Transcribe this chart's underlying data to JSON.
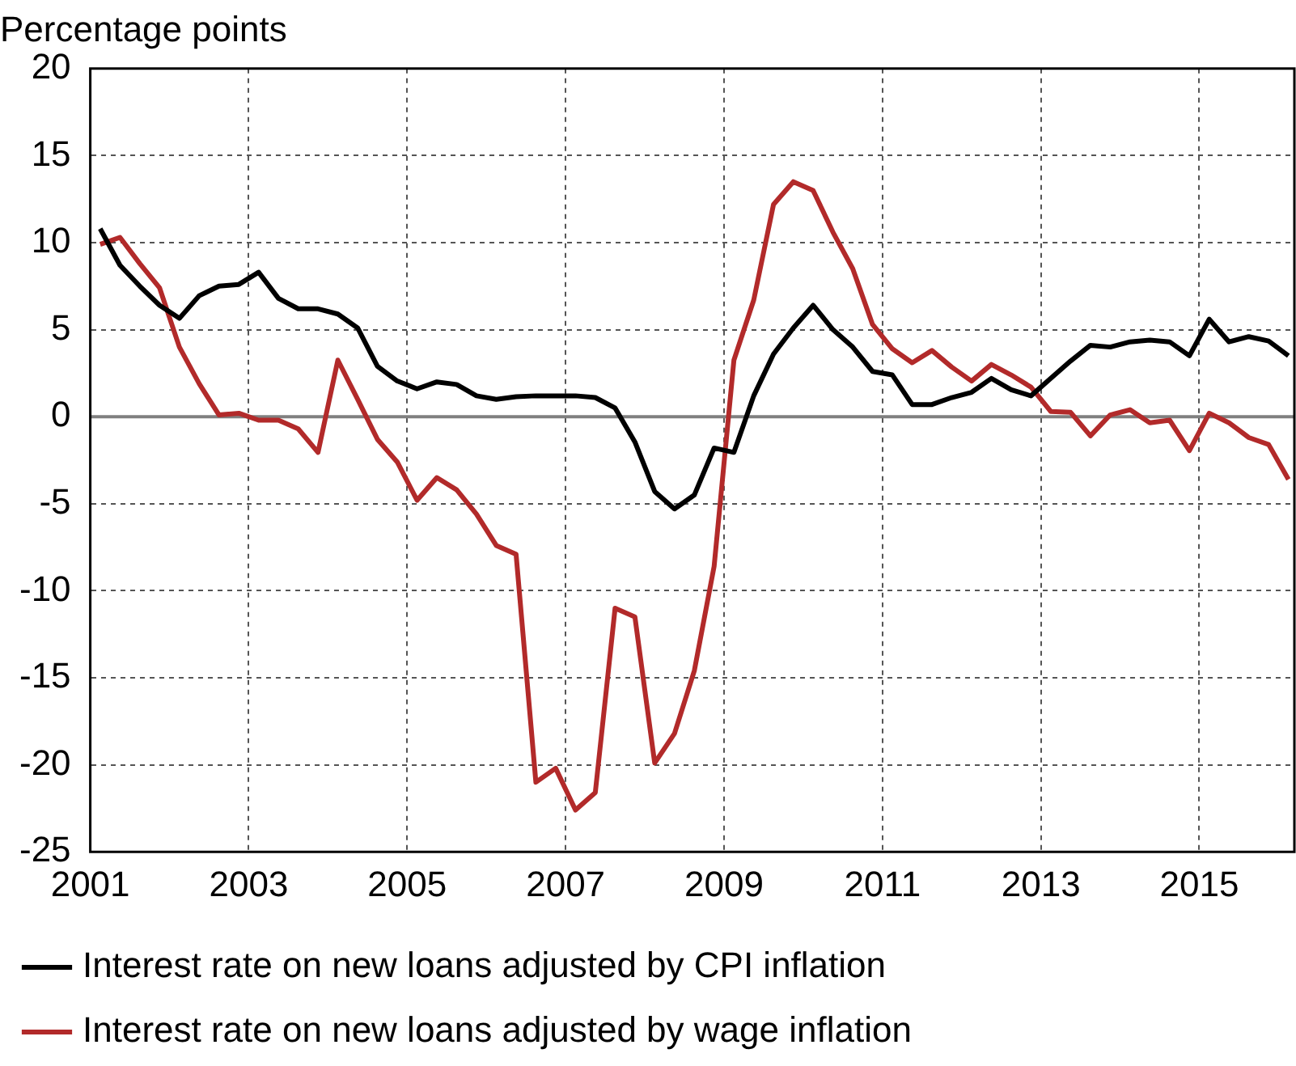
{
  "chart_data": {
    "type": "line",
    "ylabel": "Percentage points",
    "x": [
      2001.125,
      2001.375,
      2001.625,
      2001.875,
      2002.125,
      2002.375,
      2002.625,
      2002.875,
      2003.125,
      2003.375,
      2003.625,
      2003.875,
      2004.125,
      2004.375,
      2004.625,
      2004.875,
      2005.125,
      2005.375,
      2005.625,
      2005.875,
      2006.125,
      2006.375,
      2006.625,
      2006.875,
      2007.125,
      2007.375,
      2007.625,
      2007.875,
      2008.125,
      2008.375,
      2008.625,
      2008.875,
      2009.125,
      2009.375,
      2009.625,
      2009.875,
      2010.125,
      2010.375,
      2010.625,
      2010.875,
      2011.125,
      2011.375,
      2011.625,
      2011.875,
      2012.125,
      2012.375,
      2012.625,
      2012.875,
      2013.125,
      2013.375,
      2013.625,
      2013.875,
      2014.125,
      2014.375,
      2014.625,
      2014.875,
      2015.125,
      2015.375,
      2015.625,
      2015.875,
      2016.125
    ],
    "series": [
      {
        "name": "Interest rate on new loans adjusted by CPI inflation",
        "color": "#000000",
        "values": [
          10.8,
          8.7,
          7.5,
          6.4,
          5.65,
          6.95,
          7.5,
          7.6,
          8.3,
          6.8,
          6.2,
          6.2,
          5.9,
          5.1,
          2.9,
          2.05,
          1.6,
          2.0,
          1.85,
          1.2,
          1.0,
          1.15,
          1.2,
          1.2,
          1.2,
          1.1,
          0.5,
          -1.45,
          -4.3,
          -5.3,
          -4.5,
          -1.8,
          -2.05,
          1.2,
          3.6,
          5.1,
          6.4,
          5.0,
          4.0,
          2.6,
          2.4,
          0.7,
          0.7,
          1.1,
          1.4,
          2.2,
          1.55,
          1.2,
          2.2,
          3.2,
          4.1,
          4.0,
          4.3,
          4.4,
          4.3,
          3.5,
          5.6,
          4.3,
          4.6,
          4.35,
          3.5
        ]
      },
      {
        "name": "Interest rate on new loans adjusted by wage inflation",
        "color": "#b22a2a",
        "values": [
          9.9,
          10.3,
          8.8,
          7.4,
          4.0,
          1.9,
          0.1,
          0.2,
          -0.2,
          -0.2,
          -0.7,
          -2.05,
          3.25,
          1.0,
          -1.3,
          -2.6,
          -4.8,
          -3.5,
          -4.2,
          -5.6,
          -7.4,
          -7.9,
          -21.0,
          -20.2,
          -22.6,
          -21.6,
          -11.0,
          -11.5,
          -19.9,
          -18.2,
          -14.6,
          -8.6,
          3.25,
          6.7,
          12.2,
          13.5,
          13.0,
          10.6,
          8.5,
          5.3,
          3.9,
          3.1,
          3.8,
          2.85,
          2.05,
          3.0,
          2.4,
          1.7,
          0.3,
          0.25,
          -1.1,
          0.1,
          0.4,
          -0.35,
          -0.2,
          -1.95,
          0.2,
          -0.35,
          -1.2,
          -1.6,
          -3.6
        ]
      }
    ],
    "xlim": [
      2001,
      2016.2
    ],
    "xticks": [
      2001,
      2003,
      2005,
      2007,
      2009,
      2011,
      2013,
      2015
    ],
    "ylim": [
      -25,
      20
    ],
    "yticks": [
      -25,
      -20,
      -15,
      -10,
      -5,
      0,
      5,
      10,
      15,
      20
    ],
    "ref_lines": [
      {
        "axis": "y",
        "value": 0,
        "color": "#808080"
      }
    ],
    "grid": true,
    "legend": "bottom",
    "marker": "none",
    "line_style": "solid"
  }
}
